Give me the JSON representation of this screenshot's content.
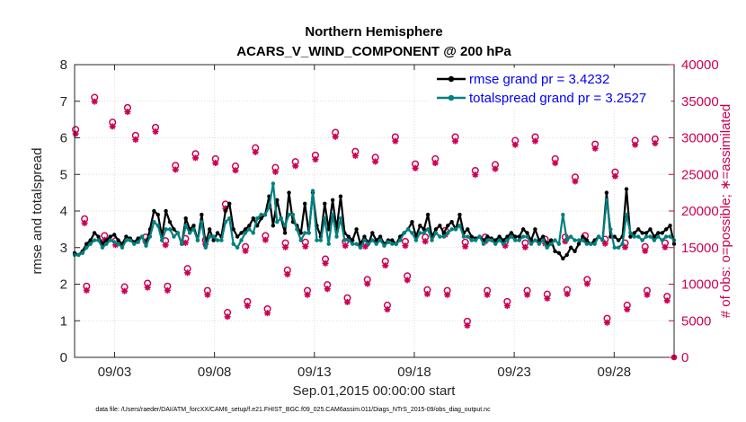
{
  "chart_data": {
    "type": "line",
    "title": "Northern Hemisphere",
    "subtitle": "ACARS_V_WIND_COMPONENT @ 200 hPa",
    "xlabel": "Sep.01,2015 00:00:00 start",
    "ylabel_left": "rmse and totalspread",
    "ylabel_right": "# of obs: o=possible; ∗=assimilated",
    "footnote": "data file: /Users/raeder/DAI/ATM_forcXX/CAM6_setup/f.e21.FHIST_BGC.f09_025.CAM6assim.011/Diags_NTrS_2015-09/obs_diag_output.nc",
    "xlim": [
      1.0,
      31.0
    ],
    "ylim_left": [
      0,
      8
    ],
    "ylim_right": [
      0,
      40000
    ],
    "xticks": [
      3,
      8,
      13,
      18,
      23,
      28
    ],
    "xtick_labels": [
      "09/03",
      "09/08",
      "09/13",
      "09/18",
      "09/23",
      "09/28"
    ],
    "yticks_left": [
      0,
      1,
      2,
      3,
      4,
      5,
      6,
      7,
      8
    ],
    "yticks_right": [
      0,
      5000,
      10000,
      15000,
      20000,
      25000,
      30000,
      35000,
      40000
    ],
    "grid": true,
    "legend_position": "top-right",
    "colors": {
      "rmse": "#000000",
      "spread": "#008080",
      "obs": "#cc0052"
    },
    "series": [
      {
        "name": "rmse grand pr = 3.4232",
        "axis": "left",
        "values": [
          2.85,
          2.8,
          2.9,
          3.1,
          3.2,
          3.4,
          3.3,
          3.1,
          3.2,
          3.3,
          3.35,
          3.2,
          3.1,
          3.3,
          3.25,
          3.15,
          3.25,
          3.3,
          3.1,
          3.5,
          4.0,
          3.9,
          3.3,
          4.0,
          3.7,
          3.5,
          3.4,
          3.1,
          3.8,
          3.5,
          3.6,
          3.2,
          3.9,
          3.1,
          3.5,
          3.2,
          3.4,
          3.3,
          4.0,
          4.2,
          3.5,
          3.3,
          3.4,
          3.5,
          3.6,
          3.8,
          3.6,
          3.8,
          3.9,
          4.4,
          3.6,
          4.3,
          3.8,
          3.4,
          4.5,
          3.7,
          3.6,
          3.4,
          4.2,
          3.4,
          4.5,
          3.6,
          3.3,
          4.2,
          3.5,
          4.3,
          3.5,
          4.4,
          3.4,
          3.3,
          3.2,
          3.5,
          3.1,
          3.3,
          3.1,
          3.4,
          3.2,
          3.3,
          3.1,
          3.2,
          3.2,
          3.1,
          3.3,
          3.4,
          3.5,
          3.7,
          3.3,
          3.6,
          3.5,
          3.9,
          3.3,
          3.5,
          3.6,
          3.4,
          3.6,
          3.7,
          3.5,
          3.9,
          3.4,
          3.5,
          3.3,
          3.25,
          3.3,
          3.2,
          3.3,
          3.25,
          3.2,
          3.3,
          3.2,
          3.3,
          3.4,
          3.3,
          3.3,
          3.5,
          3.4,
          3.2,
          3.5,
          3.2,
          3.3,
          3.1,
          3.2,
          2.9,
          2.85,
          2.7,
          2.8,
          3.0,
          2.9,
          3.1,
          3.3,
          3.2,
          3.1,
          3.2,
          3.3,
          3.2,
          4.5,
          3.3,
          3.3,
          3.2,
          3.3,
          4.6,
          3.3,
          3.4,
          3.5,
          3.4,
          3.4,
          3.5,
          3.3,
          3.4,
          3.4,
          3.5,
          3.6,
          3.1
        ]
      },
      {
        "name": "totalspread grand pr = 3.2527",
        "axis": "left",
        "values": [
          2.8,
          2.8,
          2.85,
          3.0,
          3.1,
          3.2,
          3.2,
          3.0,
          3.1,
          3.2,
          3.15,
          3.1,
          3.0,
          3.2,
          3.2,
          3.1,
          3.15,
          3.3,
          3.05,
          3.3,
          3.7,
          3.6,
          3.2,
          3.5,
          3.5,
          3.3,
          3.4,
          3.1,
          3.6,
          3.4,
          3.5,
          3.2,
          3.7,
          3.0,
          3.3,
          3.3,
          3.2,
          3.2,
          3.7,
          3.8,
          3.1,
          3.0,
          3.2,
          3.4,
          3.5,
          3.4,
          3.8,
          3.9,
          3.9,
          4.1,
          4.75,
          3.7,
          3.8,
          3.6,
          3.9,
          3.9,
          3.5,
          3.2,
          3.4,
          3.4,
          4.55,
          3.2,
          3.2,
          3.8,
          3.1,
          3.9,
          3.3,
          3.8,
          3.2,
          3.2,
          3.1,
          3.1,
          3.0,
          3.2,
          3.1,
          3.2,
          3.1,
          3.2,
          3.05,
          3.15,
          3.1,
          3.1,
          3.2,
          3.4,
          3.5,
          3.4,
          3.2,
          3.4,
          3.4,
          3.5,
          3.2,
          3.4,
          3.3,
          3.3,
          3.4,
          3.5,
          3.5,
          3.6,
          3.3,
          3.3,
          3.2,
          3.2,
          3.3,
          3.1,
          3.2,
          3.2,
          3.1,
          3.2,
          3.1,
          3.2,
          3.3,
          3.2,
          3.2,
          3.3,
          3.3,
          3.1,
          3.2,
          3.1,
          3.2,
          3.0,
          3.1,
          3.2,
          3.1,
          3.9,
          3.2,
          3.3,
          3.2,
          3.2,
          3.2,
          3.1,
          3.1,
          3.1,
          3.3,
          3.2,
          4.3,
          3.5,
          3.0,
          3.0,
          3.1,
          3.9,
          3.4,
          3.3,
          3.3,
          3.2,
          3.3,
          3.3,
          3.2,
          3.3,
          3.2,
          3.3,
          3.3,
          3.2
        ]
      }
    ],
    "obs_series": [
      {
        "name": "possible",
        "marker": "o",
        "axis": "right",
        "x": [
          1.05,
          1.5,
          1.6,
          2.0,
          2.5,
          2.9,
          3.05,
          3.5,
          3.65,
          4.05,
          4.55,
          4.65,
          5.05,
          5.55,
          5.65,
          6.05,
          6.55,
          6.65,
          7.05,
          7.55,
          7.65,
          8.05,
          8.55,
          8.65,
          9.05,
          9.55,
          9.65,
          10.05,
          10.55,
          10.65,
          11.05,
          11.55,
          11.65,
          12.05,
          12.55,
          12.65,
          13.05,
          13.55,
          13.65,
          14.05,
          14.55,
          14.65,
          15.05,
          15.55,
          15.65,
          16.05,
          16.55,
          16.65,
          17.05,
          17.55,
          17.65,
          18.05,
          18.55,
          18.65,
          19.05,
          19.55,
          19.65,
          20.05,
          20.55,
          20.65,
          21.05,
          21.55,
          21.65,
          22.05,
          22.55,
          22.65,
          23.05,
          23.55,
          23.65,
          24.05,
          24.55,
          24.65,
          25.05,
          25.55,
          25.65,
          26.05,
          26.55,
          26.65,
          27.05,
          27.55,
          27.65,
          28.05,
          28.55,
          28.65,
          29.05,
          29.55,
          29.65,
          30.05,
          30.55,
          30.65
        ],
        "values": [
          31000,
          18800,
          9600,
          35400,
          16500,
          32000,
          15800,
          9500,
          34000,
          30200,
          16300,
          10000,
          31300,
          15800,
          9600,
          26100,
          16100,
          12000,
          27700,
          15900,
          9000,
          27000,
          20800,
          6000,
          26000,
          15000,
          7500,
          28500,
          16500,
          6500,
          25800,
          15500,
          11800,
          26600,
          15600,
          9000,
          27500,
          13300,
          9800,
          30600,
          15700,
          8000,
          28000,
          15600,
          10500,
          27200,
          13000,
          7000,
          30000,
          15700,
          11000,
          26300,
          16300,
          9100,
          27000,
          17200,
          9000,
          30000,
          15600,
          4800,
          25400,
          16300,
          9000,
          26200,
          15700,
          7500,
          29500,
          15500,
          9000,
          30000,
          16000,
          8500,
          27000,
          16300,
          9100,
          24500,
          16500,
          10500,
          29000,
          16000,
          5200,
          25200,
          15500,
          7000,
          29500,
          15000,
          9000,
          29700,
          15500,
          8200
        ]
      },
      {
        "name": "assimilated",
        "marker": "*",
        "axis": "right",
        "x": [
          1.05,
          1.5,
          1.6,
          2.0,
          2.5,
          2.9,
          3.05,
          3.5,
          3.65,
          4.05,
          4.55,
          4.65,
          5.05,
          5.55,
          5.65,
          6.05,
          6.55,
          6.65,
          7.05,
          7.55,
          7.65,
          8.05,
          8.55,
          8.65,
          9.05,
          9.55,
          9.65,
          10.05,
          10.55,
          10.65,
          11.05,
          11.55,
          11.65,
          12.05,
          12.55,
          12.65,
          13.05,
          13.55,
          13.65,
          14.05,
          14.55,
          14.65,
          15.05,
          15.55,
          15.65,
          16.05,
          16.55,
          16.65,
          17.05,
          17.55,
          17.65,
          18.05,
          18.55,
          18.65,
          19.05,
          19.55,
          19.65,
          20.05,
          20.55,
          20.65,
          21.05,
          21.55,
          21.65,
          22.05,
          22.55,
          22.65,
          23.05,
          23.55,
          23.65,
          24.05,
          24.55,
          24.65,
          25.05,
          25.55,
          25.65,
          26.05,
          26.55,
          26.65,
          27.05,
          27.55,
          27.65,
          28.05,
          28.55,
          28.65,
          29.05,
          29.55,
          29.65,
          30.05,
          30.55,
          30.65
        ],
        "values": [
          30800,
          18600,
          9400,
          35200,
          16300,
          31800,
          15600,
          9300,
          33800,
          30000,
          16100,
          9800,
          31100,
          15600,
          9400,
          25900,
          15900,
          11800,
          27500,
          15700,
          8800,
          26800,
          20600,
          5800,
          25800,
          14800,
          7300,
          28300,
          16300,
          6300,
          25600,
          15300,
          11600,
          26400,
          15400,
          8800,
          27300,
          13100,
          9600,
          30400,
          15500,
          7800,
          27800,
          15400,
          10300,
          27000,
          12800,
          6800,
          29800,
          15500,
          10800,
          26100,
          16100,
          8900,
          26800,
          17000,
          8800,
          29800,
          15400,
          4600,
          25200,
          16100,
          8800,
          26000,
          15500,
          7300,
          29300,
          15300,
          8800,
          29800,
          15800,
          8300,
          26800,
          16100,
          8900,
          24300,
          16300,
          10300,
          28800,
          15800,
          5000,
          25000,
          15300,
          6800,
          29300,
          14800,
          8800,
          29500,
          15300,
          8000
        ]
      }
    ]
  }
}
